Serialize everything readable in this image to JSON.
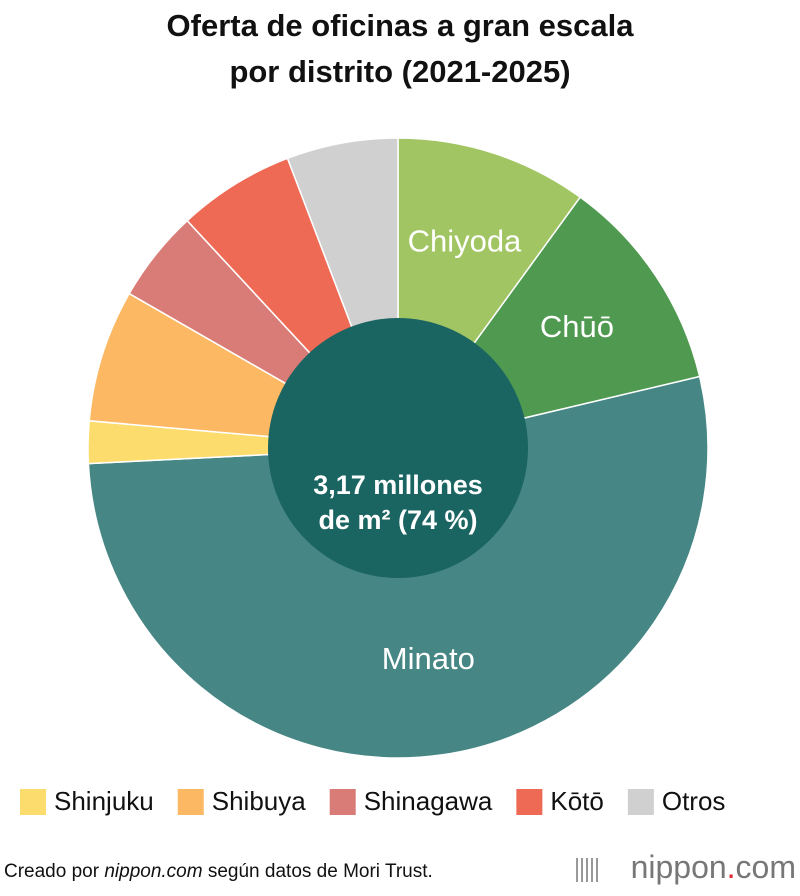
{
  "chart_data": {
    "type": "pie",
    "title": [
      "Oferta de oficinas a gran escala",
      "por distrito (2021-2025)"
    ],
    "categories": [
      "Chiyoda",
      "Chūō",
      "Minato",
      "Shinjuku",
      "Shibuya",
      "Shinagawa",
      "Kōtō",
      "Otros"
    ],
    "values": [
      10,
      11.3,
      52.9,
      2.2,
      6.9,
      4.8,
      6.1,
      5.8
    ],
    "colors": [
      "#a2c563",
      "#4f9a50",
      "#468684",
      "#fddc6e",
      "#fdb863",
      "#d97c77",
      "#ef6a55",
      "#d0d0d0"
    ],
    "center_label": [
      "3,17 millones",
      "de m² (74 %)"
    ],
    "source": [
      "Creado por ",
      "nippon.com",
      " según datos de Mori Trust."
    ],
    "logo": [
      "nippon",
      ".",
      "com"
    ]
  }
}
